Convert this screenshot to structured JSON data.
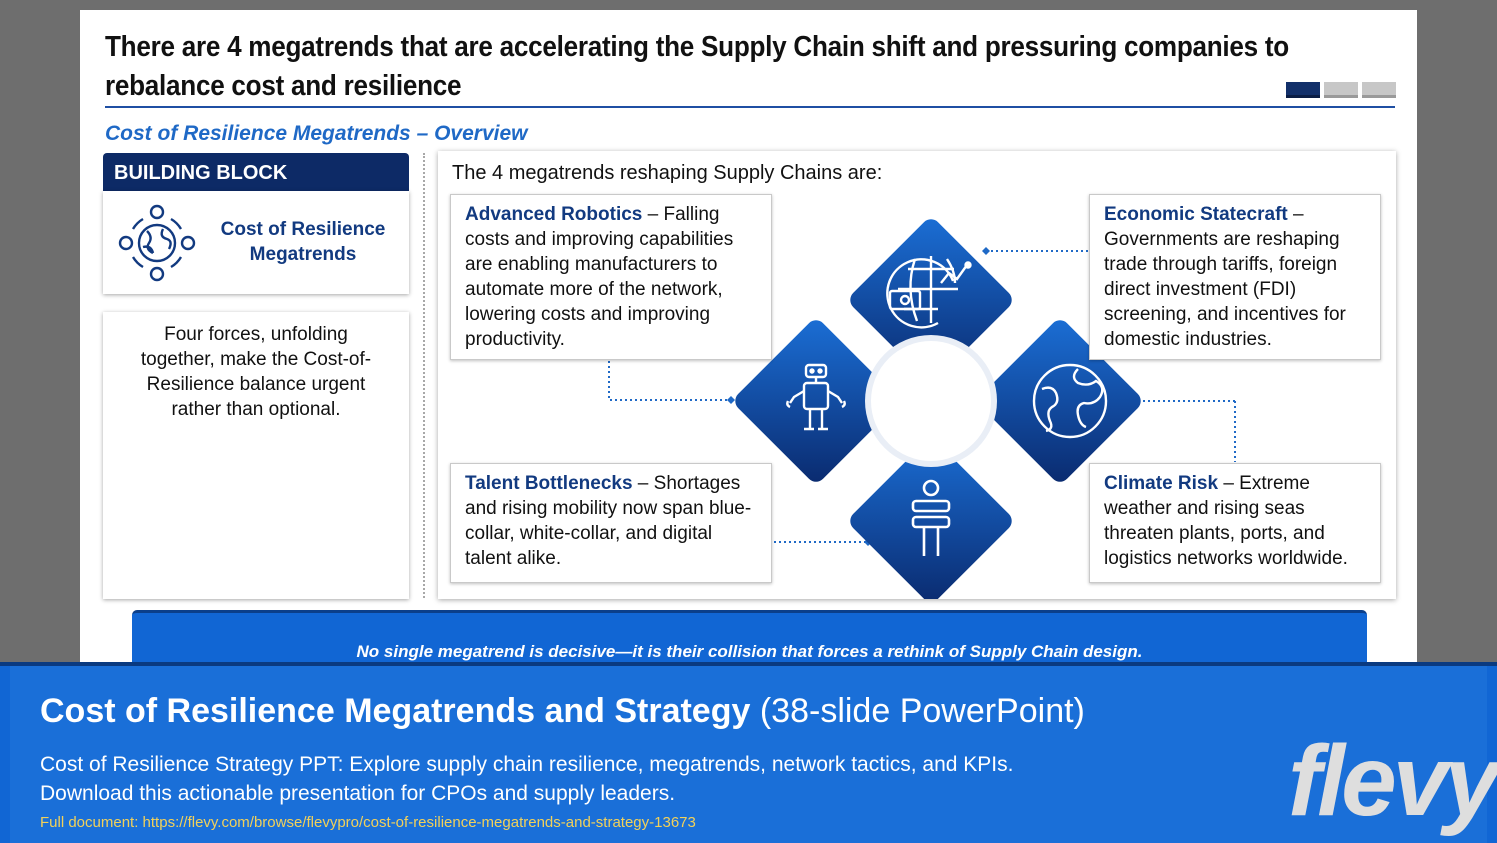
{
  "slide": {
    "title": "There are 4 megatrends that are accelerating the Supply Chain shift and pressuring companies to rebalance cost and resilience",
    "subtitle": "Cost of Resilience Megatrends – Overview",
    "building_block": {
      "header": "BUILDING BLOCK",
      "label": "Cost of Resilience Megatrends",
      "icon": "globe-cycle-icon"
    },
    "description": "Four forces, unfolding together, make the Cost-of-Resilience balance urgent rather than optional.",
    "intro": "The 4 megatrends reshaping Supply Chains are:",
    "trends": [
      {
        "name": "Advanced Robotics",
        "text": " – Falling costs and improving capabilities are enabling manufacturers to automate more of the network, lowering costs and improving productivity.",
        "icon": "robot-icon"
      },
      {
        "name": "Economic Statecraft",
        "text": " – Governments are reshaping trade through tariffs, foreign direct investment (FDI) screening, and incentives for domestic industries.",
        "icon": "globe-money-icon"
      },
      {
        "name": "Talent Bottlenecks",
        "text": " – Shortages and rising mobility now span blue-collar, white-collar, and digital talent alike.",
        "icon": "person-icon"
      },
      {
        "name": "Climate Risk",
        "text": " – Extreme weather and rising seas threaten plants, ports, and logistics networks worldwide.",
        "icon": "earth-icon"
      }
    ],
    "banner": "No single megatrend is decisive—it is their collision that forces a rethink of Supply Chain design."
  },
  "footer": {
    "title_bold": "Cost of Resilience Megatrends and Strategy",
    "title_light": " (38-slide PowerPoint)",
    "description": "Cost of Resilience Strategy PPT: Explore supply chain resilience, megatrends, network tactics, and KPIs. Download this actionable presentation for CPOs and supply leaders.",
    "url": "Full document: https://flevy.com/browse/flevypro/cost-of-resilience-megatrends-and-strategy-13673",
    "logo": "flevy"
  },
  "colors": {
    "navy": "#0d2a66",
    "accent_blue": "#1f69c6",
    "banner_blue": "#1166d4",
    "url_yellow": "#f2d15a"
  }
}
